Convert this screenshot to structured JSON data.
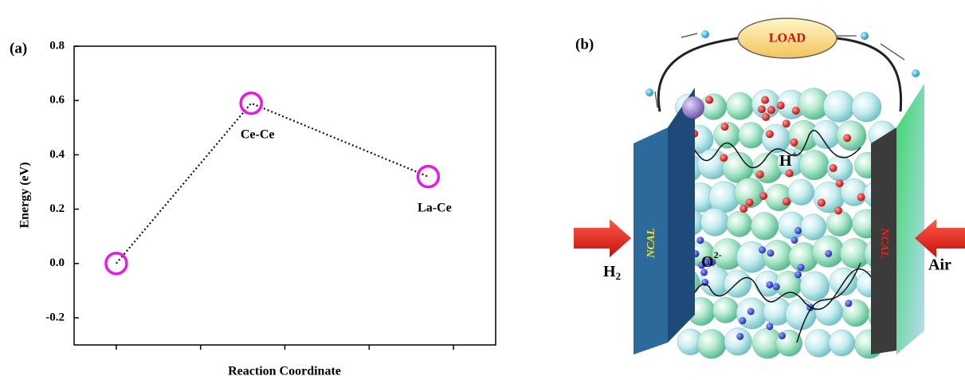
{
  "chart_data": {
    "type": "line",
    "panel_label": "(a)",
    "x": [
      1,
      2.6,
      4.7
    ],
    "values": [
      0,
      0.59,
      0.32
    ],
    "point_labels": [
      null,
      "Ce-Ce",
      "La-Ce"
    ],
    "color": "#e619e6",
    "line_color": "#111111",
    "xlim": [
      0.5,
      5.5
    ],
    "xticks": [
      1,
      2,
      3,
      4,
      5
    ],
    "ylim": [
      -0.3,
      0.8
    ],
    "yticks": [
      -0.2,
      {
        "value": 0,
        "label": "0.0"
      },
      0.2,
      0.4,
      0.6,
      0.8
    ],
    "xlabel": "Reaction Coordinate",
    "ylabel": "Energy (eV)"
  },
  "diagram": {
    "panel_label": "(b)",
    "load": "LOAD",
    "proton": {
      "base": "H",
      "charge": "+"
    },
    "oxide": {
      "base": "O",
      "charge": "2-"
    },
    "anode_label": "NCAL",
    "cathode_label": "NCAL",
    "fuel": {
      "base": "H",
      "sub": "2"
    },
    "oxidant": "Air"
  }
}
